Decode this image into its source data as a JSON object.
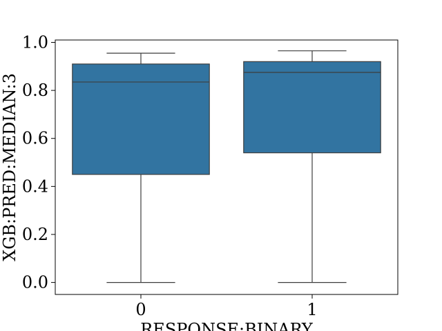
{
  "chart_data": {
    "type": "boxplot",
    "title": "",
    "xlabel": "RESPONSE:BINARY",
    "ylabel": "XGB:PRED:MEDIAN:3",
    "categories": [
      "0",
      "1"
    ],
    "boxes": [
      {
        "category": "0",
        "whisker_low": 0.0,
        "q1": 0.45,
        "median": 0.835,
        "q3": 0.91,
        "whisker_high": 0.955
      },
      {
        "category": "1",
        "whisker_low": 0.0,
        "q1": 0.54,
        "median": 0.875,
        "q3": 0.92,
        "whisker_high": 0.965
      }
    ],
    "ylim": [
      -0.05,
      1.01
    ],
    "yticks": [
      0.0,
      0.2,
      0.4,
      0.6,
      0.8,
      1.0
    ],
    "ytick_labels": [
      "0.0",
      "0.2",
      "0.4",
      "0.6",
      "0.8",
      "1.0"
    ],
    "box_color": "#3274a1",
    "line_color": "#3d3d3d",
    "grid": false,
    "legend": false
  }
}
